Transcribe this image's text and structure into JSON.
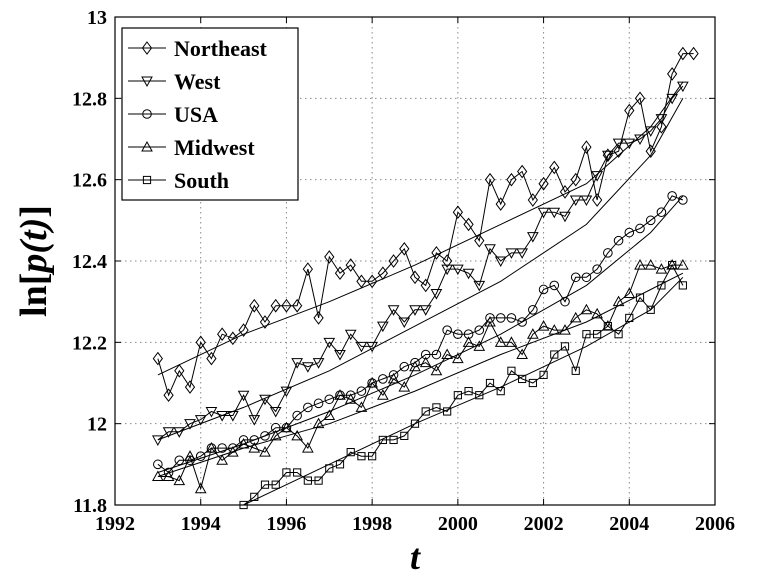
{
  "chart_data": {
    "type": "line",
    "title": "",
    "xlabel": "t",
    "ylabel": "ln[p(t)]",
    "xlim": [
      1992,
      2006
    ],
    "ylim": [
      11.8,
      13
    ],
    "xticks": [
      1992,
      1994,
      1996,
      1998,
      2000,
      2002,
      2004,
      2006
    ],
    "yticks": [
      11.8,
      12,
      12.2,
      12.4,
      12.6,
      12.8,
      13
    ],
    "xtick_labels": [
      "1992",
      "1994",
      "1996",
      "1998",
      "2000",
      "2002",
      "2004",
      "2006"
    ],
    "ytick_labels": [
      "11.8",
      "12",
      "12.2",
      "12.4",
      "12.6",
      "12.8",
      "13"
    ],
    "grid": true,
    "legend_position": "top-left",
    "series": [
      {
        "name": "Northeast",
        "marker": "diamond",
        "x_start": 1993,
        "x_step": 0.25,
        "values": [
          12.16,
          12.07,
          12.13,
          12.09,
          12.2,
          12.16,
          12.22,
          12.21,
          12.23,
          12.29,
          12.25,
          12.29,
          12.29,
          12.29,
          12.38,
          12.26,
          12.41,
          12.37,
          12.39,
          12.35,
          12.35,
          12.37,
          12.4,
          12.43,
          12.36,
          12.34,
          12.42,
          12.4,
          12.52,
          12.49,
          12.45,
          12.6,
          12.54,
          12.6,
          12.62,
          12.55,
          12.59,
          12.63,
          12.57,
          12.6,
          12.68,
          12.55,
          12.66,
          12.67,
          12.77,
          12.8,
          12.67,
          12.73,
          12.86,
          12.91,
          12.91
        ],
        "fit": [
          [
            1993,
            12.12
          ],
          [
            1995,
            12.22
          ],
          [
            1997,
            12.3
          ],
          [
            1999,
            12.39
          ],
          [
            2001,
            12.49
          ],
          [
            2003,
            12.59
          ],
          [
            2004.5,
            12.73
          ],
          [
            2005.25,
            12.84
          ]
        ]
      },
      {
        "name": "West",
        "marker": "triangle-down",
        "x_start": 1993,
        "x_step": 0.25,
        "values": [
          11.96,
          11.98,
          11.98,
          12.0,
          12.01,
          12.03,
          12.02,
          12.02,
          12.07,
          12.01,
          12.06,
          12.03,
          12.08,
          12.15,
          12.14,
          12.15,
          12.2,
          12.17,
          12.22,
          12.19,
          12.19,
          12.24,
          12.28,
          12.25,
          12.28,
          12.28,
          12.32,
          12.38,
          12.38,
          12.37,
          12.34,
          12.43,
          12.4,
          12.42,
          12.42,
          12.46,
          12.52,
          12.52,
          12.51,
          12.55,
          12.55,
          12.61,
          12.66,
          12.69,
          12.69,
          12.7,
          12.72,
          12.75,
          12.8,
          12.83
        ],
        "fit": [
          [
            1993,
            11.96
          ],
          [
            1995,
            12.04
          ],
          [
            1997,
            12.13
          ],
          [
            1999,
            12.24
          ],
          [
            2001,
            12.35
          ],
          [
            2003,
            12.49
          ],
          [
            2004.5,
            12.66
          ],
          [
            2005.25,
            12.8
          ]
        ]
      },
      {
        "name": "USA",
        "marker": "circle",
        "x_start": 1993,
        "x_step": 0.25,
        "values": [
          11.9,
          11.88,
          11.91,
          11.91,
          11.92,
          11.94,
          11.94,
          11.94,
          11.96,
          11.96,
          11.97,
          11.99,
          11.99,
          12.02,
          12.04,
          12.05,
          12.06,
          12.07,
          12.07,
          12.08,
          12.1,
          12.11,
          12.12,
          12.14,
          12.15,
          12.17,
          12.17,
          12.23,
          12.22,
          12.22,
          12.23,
          12.26,
          12.26,
          12.26,
          12.25,
          12.28,
          12.33,
          12.34,
          12.3,
          12.36,
          12.36,
          12.38,
          12.42,
          12.45,
          12.47,
          12.48,
          12.5,
          12.52,
          12.56,
          12.55
        ],
        "fit": [
          [
            1993,
            11.88
          ],
          [
            1995,
            11.95
          ],
          [
            1997,
            12.03
          ],
          [
            1999,
            12.12
          ],
          [
            2001,
            12.22
          ],
          [
            2003,
            12.34
          ],
          [
            2004.5,
            12.47
          ],
          [
            2005.25,
            12.56
          ]
        ]
      },
      {
        "name": "Midwest",
        "marker": "triangle-up",
        "x_start": 1993,
        "x_step": 0.25,
        "values": [
          11.87,
          11.87,
          11.86,
          11.92,
          11.84,
          11.94,
          11.91,
          11.93,
          11.95,
          11.94,
          11.93,
          11.97,
          11.99,
          11.97,
          11.94,
          12.0,
          12.02,
          12.07,
          12.06,
          12.04,
          12.1,
          12.07,
          12.11,
          12.09,
          12.14,
          12.15,
          12.13,
          12.17,
          12.16,
          12.2,
          12.19,
          12.25,
          12.2,
          12.2,
          12.17,
          12.22,
          12.24,
          12.23,
          12.23,
          12.26,
          12.28,
          12.27,
          12.24,
          12.3,
          12.32,
          12.39,
          12.39,
          12.38,
          12.39,
          12.39
        ],
        "fit": [
          [
            1993,
            11.87
          ],
          [
            1995,
            11.94
          ],
          [
            1997,
            12.0
          ],
          [
            1999,
            12.08
          ],
          [
            2001,
            12.17
          ],
          [
            2003,
            12.25
          ],
          [
            2004.5,
            12.33
          ],
          [
            2005.25,
            12.37
          ]
        ]
      },
      {
        "name": "South",
        "marker": "square",
        "x_start": 1995,
        "x_step": 0.25,
        "values": [
          11.8,
          11.82,
          11.85,
          11.85,
          11.88,
          11.88,
          11.86,
          11.86,
          11.89,
          11.9,
          11.93,
          11.92,
          11.92,
          11.96,
          11.96,
          11.97,
          12.0,
          12.03,
          12.04,
          12.03,
          12.07,
          12.08,
          12.07,
          12.1,
          12.08,
          12.13,
          12.11,
          12.1,
          12.12,
          12.17,
          12.19,
          12.13,
          12.22,
          12.22,
          12.24,
          12.22,
          12.26,
          12.31,
          12.28,
          12.34,
          12.39,
          12.34
        ],
        "fit": [
          [
            1995,
            11.8
          ],
          [
            1997,
            11.9
          ],
          [
            1999,
            12.0
          ],
          [
            2001,
            12.09
          ],
          [
            2003,
            12.19
          ],
          [
            2004.5,
            12.28
          ],
          [
            2005.25,
            12.36
          ]
        ]
      }
    ]
  }
}
